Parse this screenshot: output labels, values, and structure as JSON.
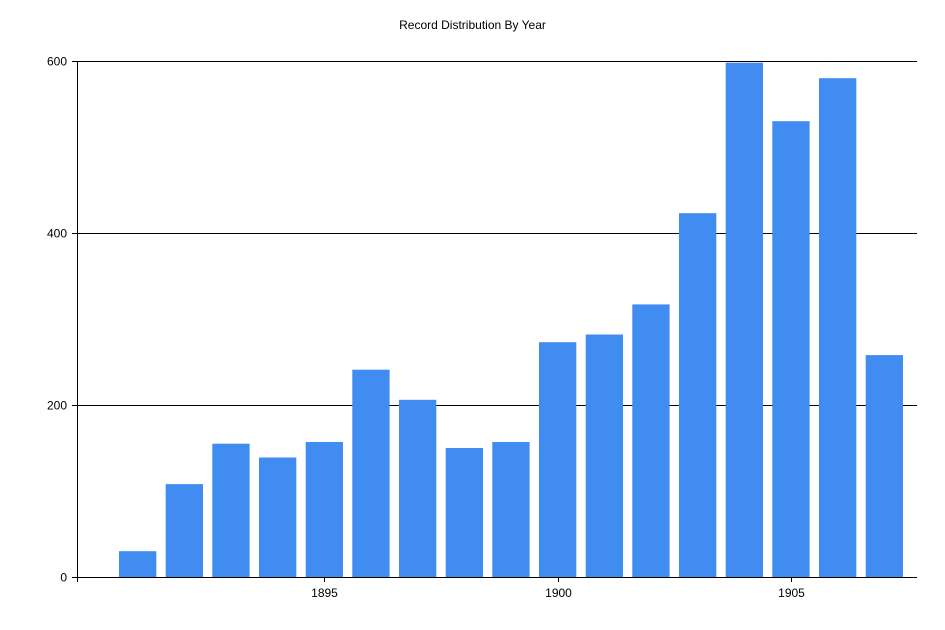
{
  "chart_data": {
    "type": "bar",
    "title": "Record Distribution By Year",
    "xlabel": "",
    "ylabel": "",
    "categories": [
      1891,
      1892,
      1893,
      1894,
      1895,
      1896,
      1897,
      1898,
      1899,
      1900,
      1901,
      1902,
      1903,
      1904,
      1905,
      1906,
      1907
    ],
    "values": [
      30,
      108,
      155,
      139,
      157,
      241,
      206,
      150,
      157,
      273,
      282,
      317,
      423,
      598,
      530,
      580,
      258
    ],
    "ylim": [
      0,
      600
    ],
    "yticks": [
      0,
      200,
      400,
      600
    ],
    "xticks": [
      1895,
      1900,
      1905
    ],
    "grid": true,
    "bar_color": "#418cf0",
    "gridline_color": "#000000",
    "background_color": "#ffffff"
  }
}
